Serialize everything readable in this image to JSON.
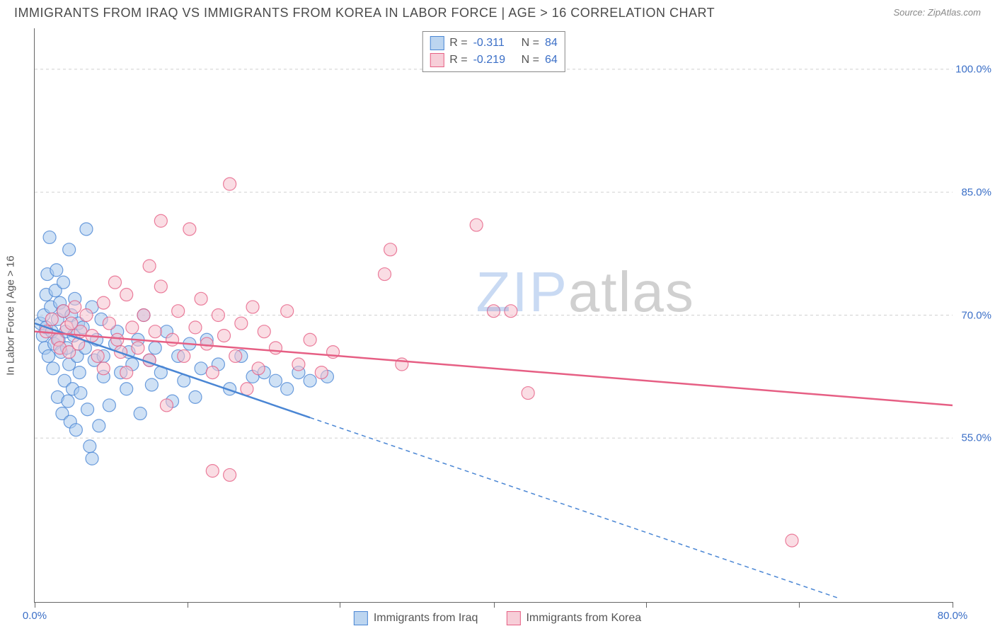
{
  "header": {
    "title": "IMMIGRANTS FROM IRAQ VS IMMIGRANTS FROM KOREA IN LABOR FORCE | AGE > 16 CORRELATION CHART",
    "source_prefix": "Source: ",
    "source_name": "ZipAtlas.com"
  },
  "watermark": {
    "part1": "ZIP",
    "part2": "atlas"
  },
  "chart": {
    "type": "scatter-correlation",
    "ylabel": "In Labor Force | Age > 16",
    "xlim": [
      0,
      80
    ],
    "ylim": [
      35,
      105
    ],
    "xtick_positions": [
      0,
      13.3,
      26.6,
      40,
      53.3,
      66.6,
      80
    ],
    "xtick_labels_shown": {
      "0": "0.0%",
      "80": "80.0%"
    },
    "ytick_positions": [
      55,
      70,
      85,
      100
    ],
    "ytick_labels": [
      "55.0%",
      "70.0%",
      "85.0%",
      "100.0%"
    ],
    "tick_label_color": "#3b6fc7",
    "grid_color": "#d0d0d0",
    "grid_dash": "4 4",
    "background_color": "#ffffff",
    "marker_size": 9,
    "marker_opacity": 0.55,
    "marker_stroke_width": 1.2,
    "series": [
      {
        "id": "iraq",
        "label": "Immigrants from Iraq",
        "fill": "#a8c8ec",
        "stroke": "#4a86d4",
        "swatch_fill": "#bcd5f0",
        "swatch_stroke": "#4a86d4",
        "r_label": "R =",
        "r_value": "-0.311",
        "n_label": "N =",
        "n_value": "84",
        "regression": {
          "x1": 0,
          "y1": 69.0,
          "x2": 24,
          "y2": 57.5,
          "x2_dash": 70,
          "y2_dash": 35.5,
          "width": 2.5
        },
        "points": [
          [
            0.5,
            69
          ],
          [
            0.7,
            67.5
          ],
          [
            0.8,
            70
          ],
          [
            0.9,
            66
          ],
          [
            1.0,
            72.5
          ],
          [
            1.0,
            68.5
          ],
          [
            1.1,
            75
          ],
          [
            1.2,
            65
          ],
          [
            1.3,
            79.5
          ],
          [
            1.4,
            71
          ],
          [
            1.5,
            68
          ],
          [
            1.6,
            63.5
          ],
          [
            1.7,
            66.5
          ],
          [
            1.8,
            73
          ],
          [
            1.9,
            75.5
          ],
          [
            2.0,
            69.5
          ],
          [
            2.0,
            60
          ],
          [
            2.1,
            67
          ],
          [
            2.2,
            71.5
          ],
          [
            2.3,
            65.5
          ],
          [
            2.4,
            58
          ],
          [
            2.5,
            70.5
          ],
          [
            2.5,
            74
          ],
          [
            2.6,
            62
          ],
          [
            2.7,
            68
          ],
          [
            2.8,
            66
          ],
          [
            2.9,
            59.5
          ],
          [
            3.0,
            78
          ],
          [
            3.0,
            64
          ],
          [
            3.1,
            57
          ],
          [
            3.2,
            70
          ],
          [
            3.3,
            61
          ],
          [
            3.4,
            67.5
          ],
          [
            3.5,
            72
          ],
          [
            3.6,
            56
          ],
          [
            3.7,
            65
          ],
          [
            3.8,
            69
          ],
          [
            3.9,
            63
          ],
          [
            4.0,
            60.5
          ],
          [
            4.2,
            68.5
          ],
          [
            4.4,
            66
          ],
          [
            4.6,
            58.5
          ],
          [
            4.8,
            54
          ],
          [
            5.0,
            71
          ],
          [
            5.0,
            52.5
          ],
          [
            5.2,
            64.5
          ],
          [
            5.4,
            67
          ],
          [
            5.6,
            56.5
          ],
          [
            5.8,
            69.5
          ],
          [
            6.0,
            62.5
          ],
          [
            6.0,
            65
          ],
          [
            6.5,
            59
          ],
          [
            7.0,
            66.5
          ],
          [
            7.2,
            68
          ],
          [
            7.5,
            63
          ],
          [
            8.0,
            61
          ],
          [
            8.2,
            65.5
          ],
          [
            8.5,
            64
          ],
          [
            9.0,
            67
          ],
          [
            9.2,
            58
          ],
          [
            9.5,
            70
          ],
          [
            10.0,
            64.5
          ],
          [
            10.2,
            61.5
          ],
          [
            10.5,
            66
          ],
          [
            11.0,
            63
          ],
          [
            11.5,
            68
          ],
          [
            12.0,
            59.5
          ],
          [
            12.5,
            65
          ],
          [
            13.0,
            62
          ],
          [
            13.5,
            66.5
          ],
          [
            14.0,
            60
          ],
          [
            14.5,
            63.5
          ],
          [
            15.0,
            67
          ],
          [
            16.0,
            64
          ],
          [
            17.0,
            61
          ],
          [
            18.0,
            65
          ],
          [
            19.0,
            62.5
          ],
          [
            20.0,
            63
          ],
          [
            21.0,
            62
          ],
          [
            22.0,
            61
          ],
          [
            23.0,
            63
          ],
          [
            24.0,
            62
          ],
          [
            25.5,
            62.5
          ],
          [
            4.5,
            80.5
          ]
        ]
      },
      {
        "id": "korea",
        "label": "Immigrants from Korea",
        "fill": "#f5c1cd",
        "stroke": "#e65f84",
        "swatch_fill": "#f7ced8",
        "swatch_stroke": "#e65f84",
        "r_label": "R =",
        "r_value": "-0.219",
        "n_label": "N =",
        "n_value": "64",
        "regression": {
          "x1": 0,
          "y1": 68.0,
          "x2": 80,
          "y2": 59.0,
          "width": 2.5
        },
        "points": [
          [
            1.0,
            68
          ],
          [
            1.5,
            69.5
          ],
          [
            2.0,
            67
          ],
          [
            2.2,
            66
          ],
          [
            2.5,
            70.5
          ],
          [
            2.8,
            68.5
          ],
          [
            3.0,
            65.5
          ],
          [
            3.2,
            69
          ],
          [
            3.5,
            71
          ],
          [
            3.8,
            66.5
          ],
          [
            4.0,
            68
          ],
          [
            4.5,
            70
          ],
          [
            5.0,
            67.5
          ],
          [
            5.5,
            65
          ],
          [
            6.0,
            71.5
          ],
          [
            6.0,
            63.5
          ],
          [
            6.5,
            69
          ],
          [
            7.0,
            74
          ],
          [
            7.2,
            67
          ],
          [
            7.5,
            65.5
          ],
          [
            8.0,
            72.5
          ],
          [
            8.0,
            63
          ],
          [
            8.5,
            68.5
          ],
          [
            9.0,
            66
          ],
          [
            9.5,
            70
          ],
          [
            10.0,
            76
          ],
          [
            10.0,
            64.5
          ],
          [
            10.5,
            68
          ],
          [
            11.0,
            73.5
          ],
          [
            11.5,
            59
          ],
          [
            12.0,
            67
          ],
          [
            12.5,
            70.5
          ],
          [
            13.0,
            65
          ],
          [
            13.5,
            80.5
          ],
          [
            14.0,
            68.5
          ],
          [
            14.5,
            72
          ],
          [
            15.0,
            66.5
          ],
          [
            15.5,
            63
          ],
          [
            16.0,
            70
          ],
          [
            16.5,
            67.5
          ],
          [
            17.0,
            86
          ],
          [
            17.5,
            65
          ],
          [
            18.0,
            69
          ],
          [
            18.5,
            61
          ],
          [
            19.0,
            71
          ],
          [
            19.5,
            63.5
          ],
          [
            20.0,
            68
          ],
          [
            21.0,
            66
          ],
          [
            22.0,
            70.5
          ],
          [
            23.0,
            64
          ],
          [
            24.0,
            67
          ],
          [
            25.0,
            63
          ],
          [
            26.0,
            65.5
          ],
          [
            15.5,
            51
          ],
          [
            30.5,
            75
          ],
          [
            31.0,
            78
          ],
          [
            32.0,
            64
          ],
          [
            38.5,
            81
          ],
          [
            40.0,
            70.5
          ],
          [
            41.5,
            70.5
          ],
          [
            43.0,
            60.5
          ],
          [
            11.0,
            81.5
          ],
          [
            66.0,
            42.5
          ],
          [
            17.0,
            50.5
          ]
        ]
      }
    ],
    "legend_bottom": [
      {
        "series": 0
      },
      {
        "series": 1
      }
    ]
  }
}
